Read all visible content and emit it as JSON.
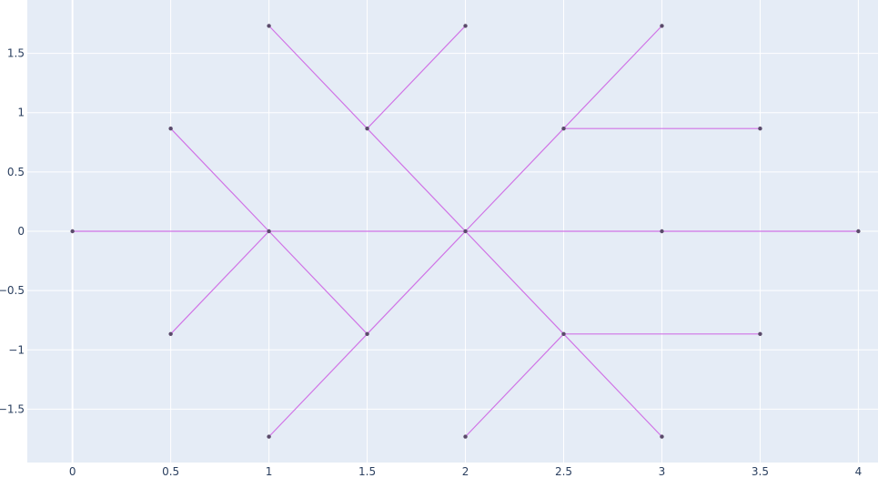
{
  "chart_data": {
    "type": "line",
    "title": "",
    "xlabel": "",
    "ylabel": "",
    "xlim": [
      -0.23,
      4.1
    ],
    "ylim": [
      -1.95,
      1.95
    ],
    "grid": true,
    "legend": "none",
    "x_ticks": [
      {
        "value": 0,
        "label": "0"
      },
      {
        "value": 0.5,
        "label": "0.5"
      },
      {
        "value": 1,
        "label": "1"
      },
      {
        "value": 1.5,
        "label": "1.5"
      },
      {
        "value": 2,
        "label": "2"
      },
      {
        "value": 2.5,
        "label": "2.5"
      },
      {
        "value": 3,
        "label": "3"
      },
      {
        "value": 3.5,
        "label": "3.5"
      },
      {
        "value": 4,
        "label": "4"
      }
    ],
    "y_ticks": [
      {
        "value": 1.5,
        "label": "1.5"
      },
      {
        "value": 1,
        "label": "1"
      },
      {
        "value": 0.5,
        "label": "0.5"
      },
      {
        "value": 0,
        "label": "0"
      },
      {
        "value": -0.5,
        "label": "−0.5"
      },
      {
        "value": -1,
        "label": "−1"
      },
      {
        "value": -1.5,
        "label": "−1.5"
      }
    ],
    "colors": {
      "plot_bg": "#e5ecf6",
      "grid": "#ffffff",
      "edge": "#d073e6",
      "node": "#5a4a6a",
      "tick_text": "#2a3f5f"
    },
    "nodes": [
      {
        "x": 0,
        "y": 0
      },
      {
        "x": 0.5,
        "y": 0.866
      },
      {
        "x": 0.5,
        "y": -0.866
      },
      {
        "x": 1,
        "y": 0
      },
      {
        "x": 1,
        "y": 1.732
      },
      {
        "x": 1,
        "y": -1.732
      },
      {
        "x": 1.5,
        "y": 0.866
      },
      {
        "x": 1.5,
        "y": -0.866
      },
      {
        "x": 2,
        "y": 0
      },
      {
        "x": 2,
        "y": 1.732
      },
      {
        "x": 2,
        "y": -1.732
      },
      {
        "x": 2.5,
        "y": 0.866
      },
      {
        "x": 2.5,
        "y": -0.866
      },
      {
        "x": 3,
        "y": 0
      },
      {
        "x": 3,
        "y": 1.732
      },
      {
        "x": 3,
        "y": -1.732
      },
      {
        "x": 3.5,
        "y": 0.866
      },
      {
        "x": 3.5,
        "y": -0.866
      },
      {
        "x": 4,
        "y": 0
      }
    ],
    "edges": [
      [
        [
          0,
          0
        ],
        [
          1,
          0
        ]
      ],
      [
        [
          1,
          0
        ],
        [
          2,
          0
        ]
      ],
      [
        [
          2,
          0
        ],
        [
          3,
          0
        ]
      ],
      [
        [
          3,
          0
        ],
        [
          4,
          0
        ]
      ],
      [
        [
          0.5,
          0.866
        ],
        [
          1,
          0
        ]
      ],
      [
        [
          0.5,
          -0.866
        ],
        [
          1,
          0
        ]
      ],
      [
        [
          1,
          0
        ],
        [
          1.5,
          -0.866
        ]
      ],
      [
        [
          1.5,
          -0.866
        ],
        [
          2,
          0
        ]
      ],
      [
        [
          1,
          -1.732
        ],
        [
          1.5,
          -0.866
        ]
      ],
      [
        [
          1,
          1.732
        ],
        [
          1.5,
          0.866
        ]
      ],
      [
        [
          1.5,
          0.866
        ],
        [
          2,
          0
        ]
      ],
      [
        [
          1.5,
          0.866
        ],
        [
          2,
          1.732
        ]
      ],
      [
        [
          2,
          0
        ],
        [
          2.5,
          0.866
        ]
      ],
      [
        [
          2.5,
          0.866
        ],
        [
          3,
          1.732
        ]
      ],
      [
        [
          2.5,
          0.866
        ],
        [
          3.5,
          0.866
        ]
      ],
      [
        [
          2,
          0
        ],
        [
          2.5,
          -0.866
        ]
      ],
      [
        [
          2.5,
          -0.866
        ],
        [
          3,
          -1.732
        ]
      ],
      [
        [
          2.5,
          -0.866
        ],
        [
          3.5,
          -0.866
        ]
      ],
      [
        [
          2,
          -1.732
        ],
        [
          2.5,
          -0.866
        ]
      ]
    ]
  }
}
